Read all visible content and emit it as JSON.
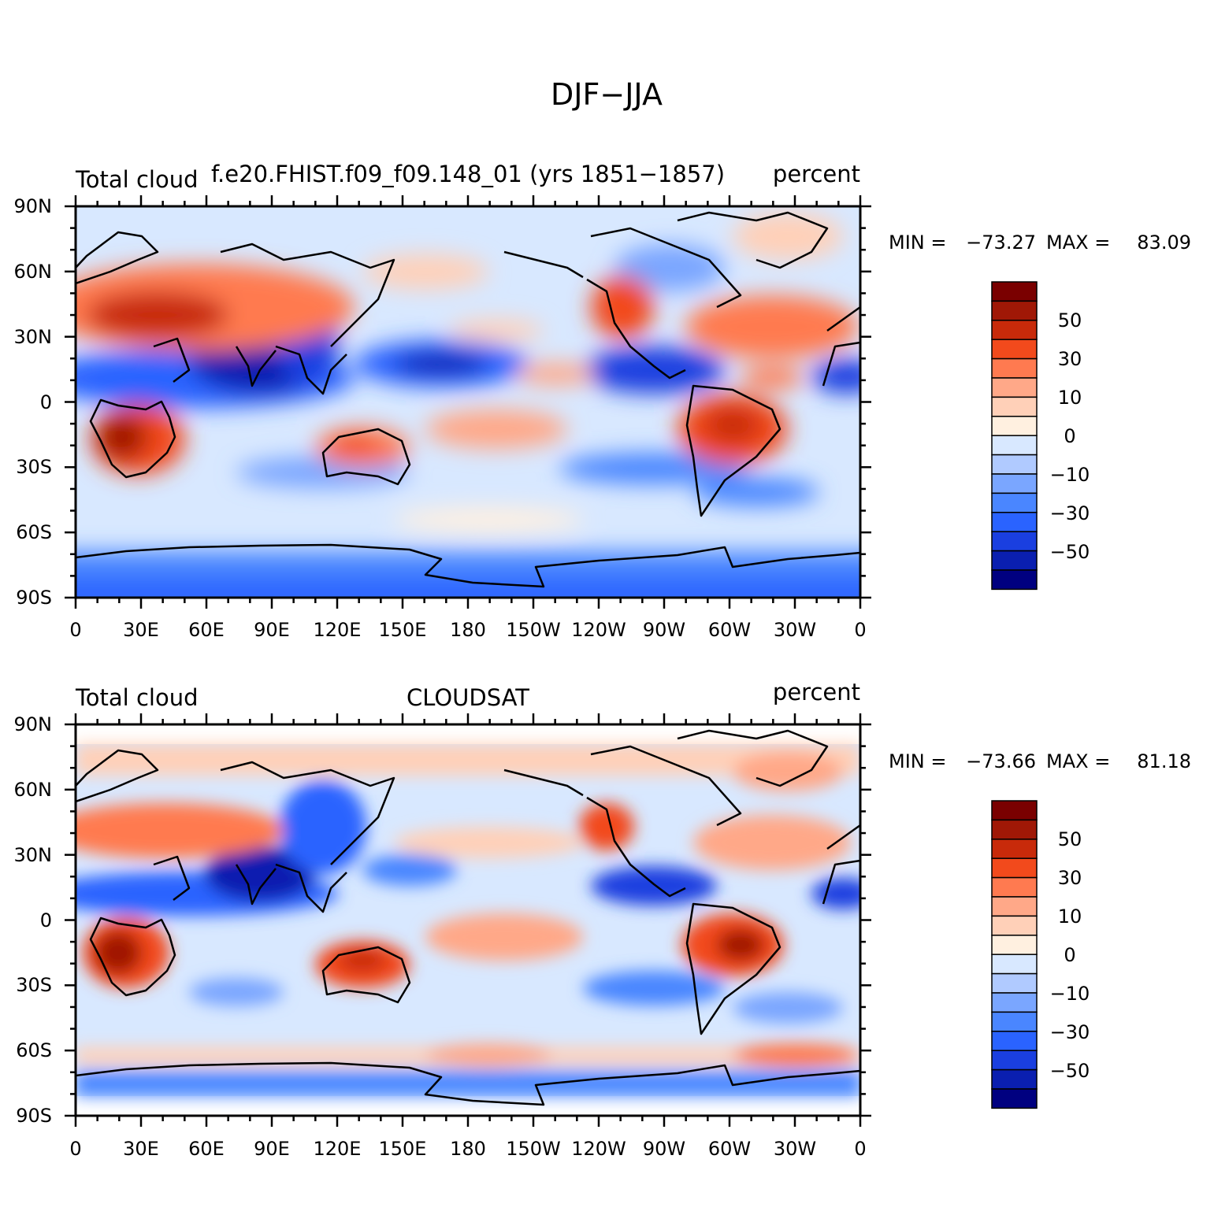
{
  "title": "DJF−JJA",
  "colors": [
    "#000080",
    "#0a1fb0",
    "#1a3fe0",
    "#2a63ff",
    "#4a86ff",
    "#7aa6ff",
    "#b0caff",
    "#d8e8ff",
    "#fff0e0",
    "#ffd0b8",
    "#ffa888",
    "#ff7a50",
    "#f24a1c",
    "#c82a0a",
    "#a01806",
    "#7a0000"
  ],
  "colorbar_labels": [
    "50",
    "30",
    "10",
    "0",
    "−10",
    "−30",
    "−50"
  ],
  "lat_ticks": [
    "90N",
    "60N",
    "30N",
    "0",
    "30S",
    "60S",
    "90S"
  ],
  "lon_ticks": [
    "0",
    "30E",
    "60E",
    "90E",
    "120E",
    "150E",
    "180",
    "150W",
    "120W",
    "90W",
    "60W",
    "30W",
    "0"
  ],
  "panels": [
    {
      "left_label": "Total cloud",
      "center_label": "f.e20.FHIST.f09_f09.148_01 (yrs 1851−1857)",
      "right_label": "percent",
      "min_label": "MIN =",
      "min_value": "−73.27",
      "max_label": "MAX =",
      "max_value": "83.09"
    },
    {
      "left_label": "Total cloud",
      "center_label": "CLOUDSAT",
      "right_label": "percent",
      "min_label": "MIN =",
      "min_value": "−73.66",
      "max_label": "MAX =",
      "max_value": "81.18"
    }
  ]
}
